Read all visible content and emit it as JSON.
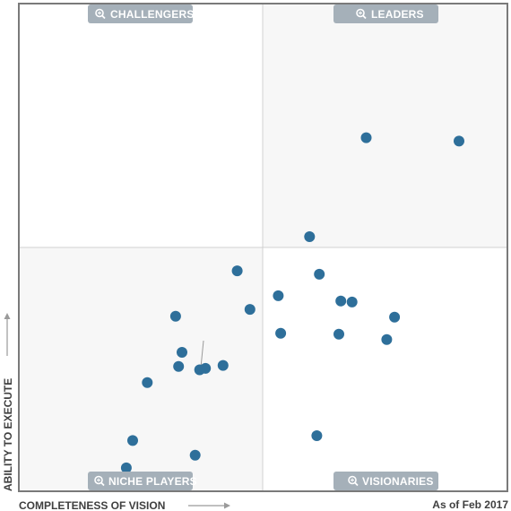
{
  "chart_data": {
    "type": "scatter",
    "title": "",
    "xlabel": "COMPLETENESS OF VISION",
    "ylabel": "ABILITY TO EXECUTE",
    "as_of": "As of Feb 2017",
    "xlim": [
      0,
      100
    ],
    "ylim": [
      0,
      100
    ],
    "grid": false,
    "quadrants": {
      "top_left": "CHALLENGERS",
      "top_right": "LEADERS",
      "bottom_left": "NICHE PLAYERS",
      "bottom_right": "VISIONARIES"
    },
    "points": [
      {
        "x": 71.1,
        "y": 72.5
      },
      {
        "x": 90.1,
        "y": 71.8
      },
      {
        "x": 59.5,
        "y": 52.2
      },
      {
        "x": 44.7,
        "y": 45.2
      },
      {
        "x": 61.5,
        "y": 44.5
      },
      {
        "x": 53.1,
        "y": 40.1
      },
      {
        "x": 65.9,
        "y": 39.0
      },
      {
        "x": 68.2,
        "y": 38.8
      },
      {
        "x": 47.3,
        "y": 37.3
      },
      {
        "x": 32.1,
        "y": 35.9
      },
      {
        "x": 76.9,
        "y": 35.7
      },
      {
        "x": 53.6,
        "y": 32.4
      },
      {
        "x": 65.5,
        "y": 32.2
      },
      {
        "x": 75.3,
        "y": 31.1
      },
      {
        "x": 33.4,
        "y": 28.5
      },
      {
        "x": 32.7,
        "y": 25.6
      },
      {
        "x": 41.8,
        "y": 25.8
      },
      {
        "x": 38.2,
        "y": 25.2
      },
      {
        "x": 37.0,
        "y": 24.9
      },
      {
        "x": 26.3,
        "y": 22.3
      },
      {
        "x": 61.0,
        "y": 11.4
      },
      {
        "x": 23.3,
        "y": 10.4
      },
      {
        "x": 36.1,
        "y": 7.4
      },
      {
        "x": 22.0,
        "y": 4.8
      }
    ]
  },
  "colors": {
    "point": "#2e6f9a",
    "badge": "#a5b0b9",
    "shade": "#f7f7f7",
    "frame": "#7a7a7a",
    "divider": "#d0d0d0",
    "arrow": "#9a9a9a"
  },
  "icons": {
    "quadrant_badge": "magnifier-icon",
    "x_axis_arrow": "arrow-right-icon",
    "y_axis_arrow": "arrow-up-icon"
  }
}
